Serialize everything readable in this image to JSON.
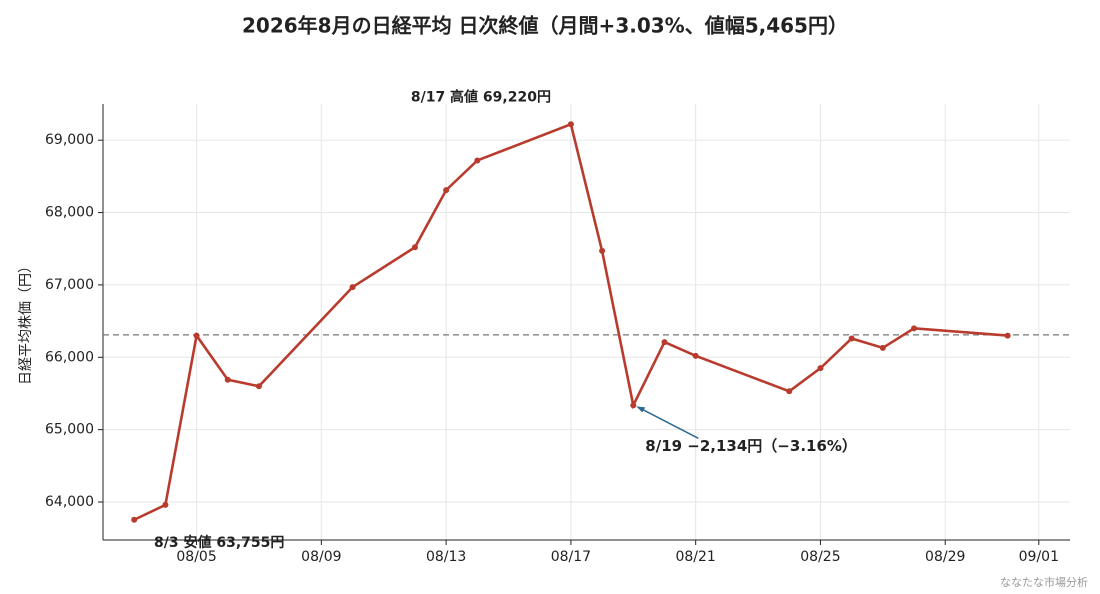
{
  "chart_data": {
    "type": "line",
    "title": "2026年8月の日経平均 日次終値（月間+3.03%、値幅5,465円）",
    "y_label": "日経平均株価（円）",
    "source": "ななたな市場分析",
    "x": [
      "08/03",
      "08/04",
      "08/05",
      "08/06",
      "08/07",
      "08/10",
      "08/12",
      "08/13",
      "08/14",
      "08/17",
      "08/18",
      "08/19",
      "08/20",
      "08/21",
      "08/24",
      "08/25",
      "08/26",
      "08/27",
      "08/28",
      "08/31"
    ],
    "series": [
      {
        "name": "日経平均",
        "color": "#b83b2e",
        "values": [
          63755,
          63960,
          66300,
          65690,
          65600,
          66970,
          67520,
          68310,
          68720,
          69220,
          67470,
          65336,
          66210,
          66020,
          65530,
          65850,
          66260,
          66130,
          66400,
          66300
        ]
      }
    ],
    "reference_line": 66310,
    "xlim": [
      "08/02",
      "09/02"
    ],
    "xticks": [
      "08/05",
      "08/09",
      "08/13",
      "08/17",
      "08/21",
      "08/25",
      "08/29",
      "09/01"
    ],
    "ylim": [
      63475,
      69500
    ],
    "yticks": [
      {
        "value": 64000,
        "label": "64,000"
      },
      {
        "value": 65000,
        "label": "65,000"
      },
      {
        "value": 66000,
        "label": "66,000"
      },
      {
        "value": 67000,
        "label": "67,000"
      },
      {
        "value": 68000,
        "label": "68,000"
      },
      {
        "value": 69000,
        "label": "69,000"
      }
    ],
    "grid": true,
    "annotations": [
      {
        "text": "8/17 高値 69,220円",
        "color": "#111111"
      },
      {
        "text": "8/3 安値 63,755円",
        "color": "#111111"
      },
      {
        "text": "8/19 −2,134円（−3.16%）",
        "color": "#2c6a93"
      }
    ]
  }
}
